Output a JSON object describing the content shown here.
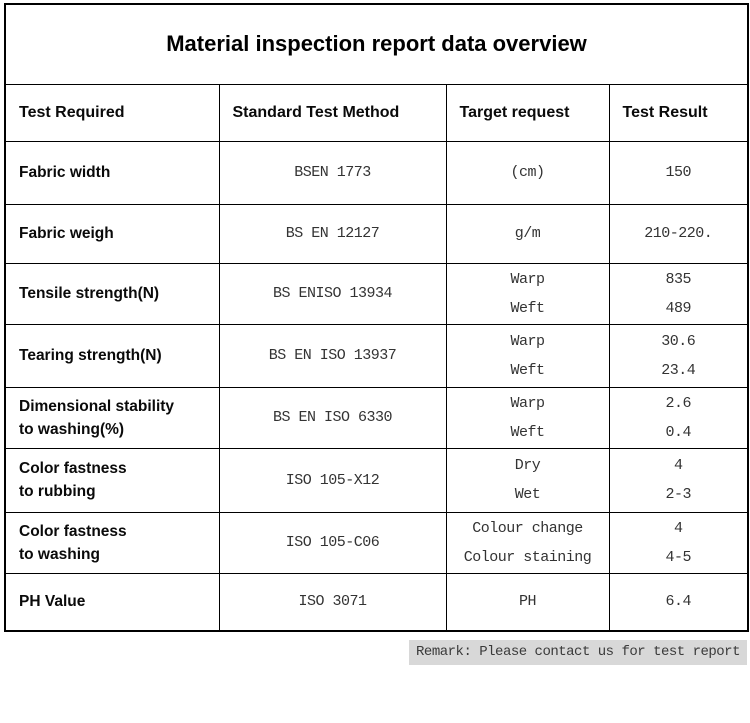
{
  "title": "Material inspection report data overview",
  "table": {
    "columns": [
      "Test Required",
      "Standard Test Method",
      "Target request",
      "Test Result"
    ],
    "rows": [
      {
        "test": [
          "Fabric width"
        ],
        "method": "BSEN 1773",
        "target": [
          "(cm)"
        ],
        "result": [
          "150"
        ]
      },
      {
        "test": [
          "Fabric weigh"
        ],
        "method": "BS EN 12127",
        "target": [
          "g/m"
        ],
        "result": [
          "210-220."
        ]
      },
      {
        "test": [
          "Tensile strength(N)"
        ],
        "method": "BS ENISO 13934",
        "target": [
          "Warp",
          "Weft"
        ],
        "result": [
          "835",
          "489"
        ]
      },
      {
        "test": [
          "Tearing strength(N)"
        ],
        "method": "BS EN ISO 13937",
        "target": [
          "Warp",
          "Weft"
        ],
        "result": [
          "30.6",
          "23.4"
        ]
      },
      {
        "test": [
          "Dimensional stability",
          "to washing(%)"
        ],
        "method": "BS EN ISO 6330",
        "target": [
          "Warp",
          "Weft"
        ],
        "result": [
          "2.6",
          "0.4"
        ]
      },
      {
        "test": [
          "Color fastness",
          "to rubbing"
        ],
        "method": "ISO 105-X12",
        "target": [
          "Dry",
          "Wet"
        ],
        "result": [
          "4",
          "2-3"
        ]
      },
      {
        "test": [
          "Color fastness",
          "to washing"
        ],
        "method": "ISO 105-C06",
        "target": [
          "Colour change",
          "Colour staining"
        ],
        "result": [
          "4",
          "4-5"
        ]
      },
      {
        "test": [
          "PH Value"
        ],
        "method": "ISO 3071",
        "target": [
          "PH"
        ],
        "result": [
          "6.4"
        ]
      }
    ]
  },
  "remark": "Remark: Please contact us for test report",
  "colors": {
    "border": "#000000",
    "remark_background": "#d8d8d8",
    "value_text": "#333333"
  }
}
